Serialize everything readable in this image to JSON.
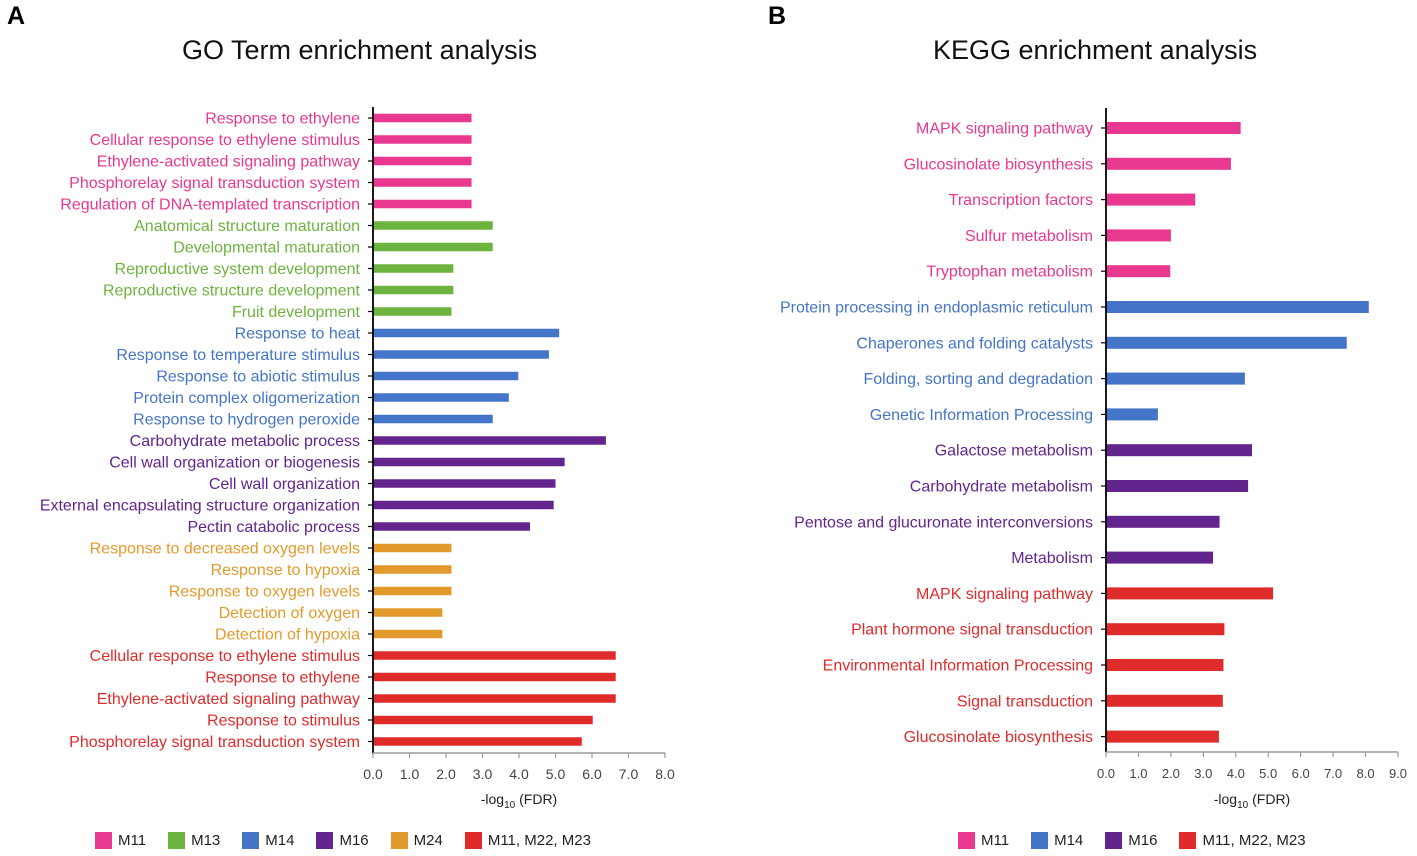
{
  "panels": [
    {
      "letter": "A",
      "title": "GO Term enrichment analysis"
    },
    {
      "letter": "B",
      "title": "KEGG enrichment analysis"
    }
  ],
  "colors": {
    "M11": "#e8388f",
    "M13": "#6db33f",
    "M14": "#4475c8",
    "M16": "#63248e",
    "M24": "#e39a2c",
    "M11, M22, M23": "#e02b2b"
  },
  "xlabel": {
    "prefix": "-log",
    "sub": "10",
    "suffix": " (FDR)"
  },
  "chart_data": [
    {
      "type": "bar",
      "orientation": "horizontal",
      "title": "GO Term enrichment analysis",
      "xlabel": "-log10 (FDR)",
      "xlim": [
        0,
        8
      ],
      "xticks": [
        "0.0",
        "1.0",
        "2.0",
        "3.0",
        "4.0",
        "5.0",
        "6.0",
        "7.0",
        "8.0"
      ],
      "bars": [
        {
          "label": "Response to ethylene",
          "value": 2.7,
          "group": "M11"
        },
        {
          "label": "Cellular response to ethylene stimulus",
          "value": 2.7,
          "group": "M11"
        },
        {
          "label": "Ethylene-activated signaling pathway",
          "value": 2.7,
          "group": "M11"
        },
        {
          "label": "Phosphorelay signal transduction system",
          "value": 2.7,
          "group": "M11"
        },
        {
          "label": "Regulation of DNA-templated transcription",
          "value": 2.7,
          "group": "M11"
        },
        {
          "label": "Anatomical structure maturation",
          "value": 3.28,
          "group": "M13"
        },
        {
          "label": "Developmental maturation",
          "value": 3.28,
          "group": "M13"
        },
        {
          "label": "Reproductive system development",
          "value": 2.2,
          "group": "M13"
        },
        {
          "label": "Reproductive structure development",
          "value": 2.2,
          "group": "M13"
        },
        {
          "label": "Fruit development",
          "value": 2.15,
          "group": "M13"
        },
        {
          "label": "Response to heat",
          "value": 5.1,
          "group": "M14"
        },
        {
          "label": "Response to temperature stimulus",
          "value": 4.82,
          "group": "M14"
        },
        {
          "label": "Response to abiotic stimulus",
          "value": 3.98,
          "group": "M14"
        },
        {
          "label": "Protein complex oligomerization",
          "value": 3.72,
          "group": "M14"
        },
        {
          "label": "Response to hydrogen peroxide",
          "value": 3.28,
          "group": "M14"
        },
        {
          "label": "Carbohydrate metabolic process",
          "value": 6.38,
          "group": "M16"
        },
        {
          "label": "Cell wall organization or biogenesis",
          "value": 5.25,
          "group": "M16"
        },
        {
          "label": "Cell wall organization",
          "value": 5.0,
          "group": "M16"
        },
        {
          "label": "External encapsulating structure organization",
          "value": 4.95,
          "group": "M16"
        },
        {
          "label": "Pectin catabolic process",
          "value": 4.3,
          "group": "M16"
        },
        {
          "label": "Response to decreased oxygen levels",
          "value": 2.15,
          "group": "M24"
        },
        {
          "label": "Response to hypoxia",
          "value": 2.15,
          "group": "M24"
        },
        {
          "label": "Response to oxygen levels",
          "value": 2.15,
          "group": "M24"
        },
        {
          "label": "Detection of oxygen",
          "value": 1.9,
          "group": "M24"
        },
        {
          "label": "Detection of hypoxia",
          "value": 1.9,
          "group": "M24"
        },
        {
          "label": "Cellular response to ethylene stimulus",
          "value": 6.65,
          "group": "M11, M22, M23"
        },
        {
          "label": "Response to ethylene",
          "value": 6.65,
          "group": "M11, M22, M23"
        },
        {
          "label": "Ethylene-activated signaling pathway",
          "value": 6.65,
          "group": "M11, M22, M23"
        },
        {
          "label": "Response to stimulus",
          "value": 6.02,
          "group": "M11, M22, M23"
        },
        {
          "label": "Phosphorelay signal transduction system",
          "value": 5.72,
          "group": "M11, M22, M23"
        }
      ],
      "legend": [
        "M11",
        "M13",
        "M14",
        "M16",
        "M24",
        "M11, M22, M23"
      ]
    },
    {
      "type": "bar",
      "orientation": "horizontal",
      "title": "KEGG enrichment analysis",
      "xlabel": "-log10 (FDR)",
      "xlim": [
        0,
        9
      ],
      "xticks": [
        "0.0",
        "1.0",
        "2.0",
        "3.0",
        "4.0",
        "5.0",
        "6.0",
        "7.0",
        "8.0",
        "9.0"
      ],
      "bars": [
        {
          "label": "MAPK signaling pathway",
          "value": 4.15,
          "group": "M11"
        },
        {
          "label": "Glucosinolate biosynthesis",
          "value": 3.85,
          "group": "M11"
        },
        {
          "label": "Transcription factors",
          "value": 2.75,
          "group": "M11"
        },
        {
          "label": "Sulfur metabolism",
          "value": 2.0,
          "group": "M11"
        },
        {
          "label": "Tryptophan metabolism",
          "value": 1.98,
          "group": "M11"
        },
        {
          "label": "Protein processing in endoplasmic reticulum",
          "value": 8.1,
          "group": "M14"
        },
        {
          "label": "Chaperones and folding catalysts",
          "value": 7.42,
          "group": "M14"
        },
        {
          "label": "Folding, sorting and degradation",
          "value": 4.28,
          "group": "M14"
        },
        {
          "label": "Genetic Information Processing",
          "value": 1.6,
          "group": "M14"
        },
        {
          "label": "Galactose metabolism",
          "value": 4.5,
          "group": "M16"
        },
        {
          "label": "Carbohydrate metabolism",
          "value": 4.38,
          "group": "M16"
        },
        {
          "label": "Pentose and glucuronate interconversions",
          "value": 3.5,
          "group": "M16"
        },
        {
          "label": "Metabolism",
          "value": 3.3,
          "group": "M16"
        },
        {
          "label": "MAPK signaling pathway",
          "value": 5.15,
          "group": "M11, M22, M23"
        },
        {
          "label": "Plant hormone signal transduction",
          "value": 3.65,
          "group": "M11, M22, M23"
        },
        {
          "label": "Environmental Information Processing",
          "value": 3.62,
          "group": "M11, M22, M23"
        },
        {
          "label": "Signal transduction",
          "value": 3.6,
          "group": "M11, M22, M23"
        },
        {
          "label": "Glucosinolate biosynthesis",
          "value": 3.48,
          "group": "M11, M22, M23"
        }
      ],
      "legend": [
        "M11",
        "M14",
        "M16",
        "M11, M22, M23"
      ]
    }
  ]
}
